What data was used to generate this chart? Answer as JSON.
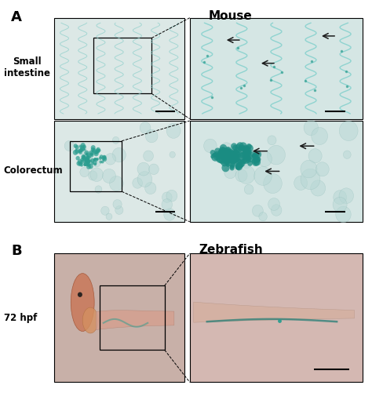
{
  "title_A": "Mouse",
  "title_B": "Zebrafish",
  "label_A": "A",
  "label_B": "B",
  "label_small_intestine": "Small\nintestine",
  "label_colorectum": "Colorectum",
  "label_72hpf": "72 hpf",
  "bg_color": "#ffffff",
  "panel_bg_top_left": "#e8f0ee",
  "panel_bg_top_right": "#ddeaea",
  "panel_bg_bot_left": "#e5ecec",
  "panel_bg_bot_right": "#ddeaea",
  "panel_bg_zf_left": "#d8c5bc",
  "panel_bg_zf_right": "#e2d0cc",
  "teal_color": "#2a9d8f",
  "arrow_color": "#1a1a1a",
  "figure_width": 4.74,
  "figure_height": 5.05,
  "dpi": 100
}
